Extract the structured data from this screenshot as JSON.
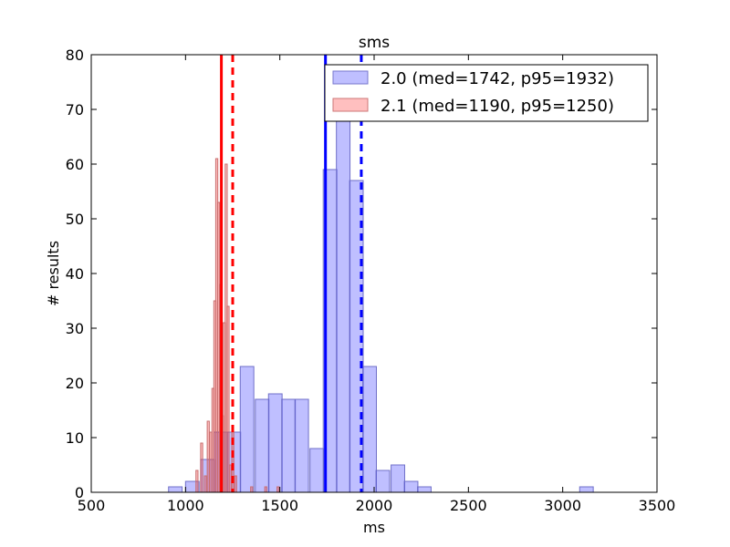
{
  "chart_data": {
    "type": "bar",
    "title": "sms",
    "xlabel": "ms",
    "ylabel": "# results",
    "xlim": [
      500,
      3500
    ],
    "ylim": [
      0,
      80
    ],
    "xticks": [
      "500",
      "1000",
      "1500",
      "2000",
      "2500",
      "3000",
      "3500"
    ],
    "yticks": [
      "0",
      "10",
      "20",
      "30",
      "40",
      "50",
      "60",
      "70",
      "80"
    ],
    "legend_position": "top-right",
    "grid": false,
    "series": [
      {
        "name": "2.0 (med=1742, p95=1932)",
        "color": "#0000ff",
        "bin_width": 72,
        "bins": [
          {
            "x": 910,
            "count": 1
          },
          {
            "x": 1000,
            "count": 2
          },
          {
            "x": 1080,
            "count": 6
          },
          {
            "x": 1150,
            "count": 11
          },
          {
            "x": 1220,
            "count": 11
          },
          {
            "x": 1290,
            "count": 23
          },
          {
            "x": 1370,
            "count": 17
          },
          {
            "x": 1440,
            "count": 18
          },
          {
            "x": 1510,
            "count": 17
          },
          {
            "x": 1580,
            "count": 17
          },
          {
            "x": 1660,
            "count": 8
          },
          {
            "x": 1730,
            "count": 59
          },
          {
            "x": 1800,
            "count": 72
          },
          {
            "x": 1870,
            "count": 57
          },
          {
            "x": 1940,
            "count": 23
          },
          {
            "x": 2010,
            "count": 4
          },
          {
            "x": 2090,
            "count": 5
          },
          {
            "x": 2160,
            "count": 2
          },
          {
            "x": 2230,
            "count": 1
          },
          {
            "x": 3090,
            "count": 1
          }
        ],
        "median": 1742,
        "p95": 1932
      },
      {
        "name": "2.1 (med=1190, p95=1250)",
        "color": "#ff0000",
        "bin_width": 11,
        "bins": [
          {
            "x": 1055,
            "count": 4
          },
          {
            "x": 1080,
            "count": 9
          },
          {
            "x": 1100,
            "count": 3
          },
          {
            "x": 1115,
            "count": 13
          },
          {
            "x": 1128,
            "count": 11
          },
          {
            "x": 1140,
            "count": 19
          },
          {
            "x": 1150,
            "count": 35
          },
          {
            "x": 1160,
            "count": 61
          },
          {
            "x": 1170,
            "count": 53
          },
          {
            "x": 1180,
            "count": 38
          },
          {
            "x": 1190,
            "count": 14
          },
          {
            "x": 1200,
            "count": 31
          },
          {
            "x": 1210,
            "count": 60
          },
          {
            "x": 1220,
            "count": 34
          },
          {
            "x": 1232,
            "count": 5
          },
          {
            "x": 1245,
            "count": 11
          },
          {
            "x": 1260,
            "count": 3
          },
          {
            "x": 1345,
            "count": 1
          },
          {
            "x": 1420,
            "count": 1
          },
          {
            "x": 1485,
            "count": 1
          }
        ],
        "median": 1190,
        "p95": 1250
      }
    ]
  }
}
